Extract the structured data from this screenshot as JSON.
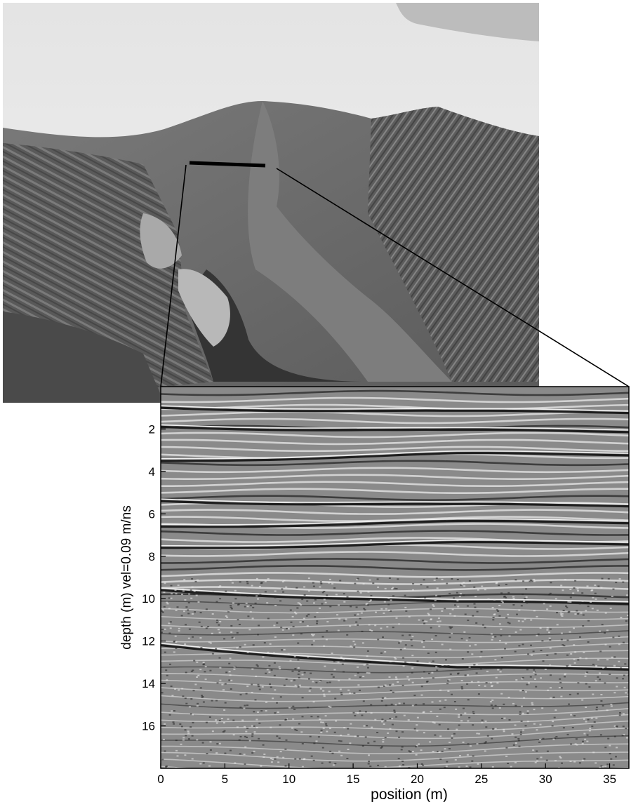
{
  "chart_data": {
    "type": "heatmap",
    "description_elements": [
      "photograph of sand dune with survey line",
      "ground penetrating radar profile"
    ],
    "xlabel": "position (m)",
    "ylabel": "depth (m)  vel=0.09 m/ns",
    "xlim": [
      0,
      36.5
    ],
    "ylim": [
      18,
      0
    ],
    "xticks": [
      0,
      5,
      10,
      15,
      20,
      25,
      30,
      35
    ],
    "yticks": [
      2,
      4,
      6,
      8,
      10,
      12,
      14,
      16
    ],
    "velocity_m_per_ns": 0.09,
    "colormap": "grayscale",
    "reflectors": [
      {
        "depth_start": 1.0,
        "depth_end": 1.2
      },
      {
        "depth_start": 1.9,
        "depth_end": 2.1
      },
      {
        "depth_start": 3.5,
        "depth_end": 3.2
      },
      {
        "depth_start": 5.4,
        "depth_end": 5.6
      },
      {
        "depth_start": 6.6,
        "depth_end": 6.4
      },
      {
        "depth_start": 7.6,
        "depth_end": 7.4
      },
      {
        "depth_start": 9.6,
        "depth_end": 10.2
      },
      {
        "depth_start": 12.2,
        "depth_end": 13.3
      }
    ]
  }
}
